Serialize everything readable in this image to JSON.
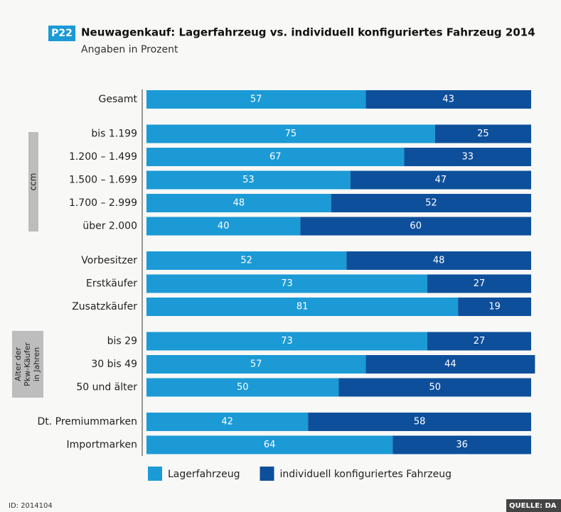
{
  "badge": "P22",
  "chart_data": {
    "type": "bar",
    "orientation": "horizontal",
    "stacked": true,
    "title": "Neuwagenkauf: Lagerfahrzeug vs. individuell konfiguriertes Fahrzeug 2014",
    "subtitle": "Angaben in Prozent",
    "categories": [
      "Gesamt",
      "bis 1.199",
      "1.200 – 1.499",
      "1.500 – 1.699",
      "1.700 – 2.999",
      "über 2.000",
      "Vorbesitzer",
      "Erstkäufer",
      "Zusatzkäufer",
      "bis 29",
      "30 bis 49",
      "50 und älter",
      "Dt. Premiummarken",
      "Importmarken"
    ],
    "groups": [
      "ccm",
      [
        "Alter der",
        "Pkw-Käufer",
        "in Jahren"
      ]
    ],
    "series": [
      {
        "name": "Lagerfahrzeug",
        "color": "#1b9ad6",
        "values": [
          57,
          75,
          67,
          53,
          48,
          40,
          52,
          73,
          81,
          73,
          57,
          50,
          42,
          64
        ]
      },
      {
        "name": "individuell konfiguriertes Fahrzeug",
        "color": "#0e4f9b",
        "values": [
          43,
          25,
          33,
          47,
          52,
          60,
          48,
          27,
          19,
          27,
          44,
          50,
          58,
          36
        ]
      }
    ]
  },
  "footer": {
    "id": "ID: 2014104",
    "source": "QUELLE: DA"
  }
}
